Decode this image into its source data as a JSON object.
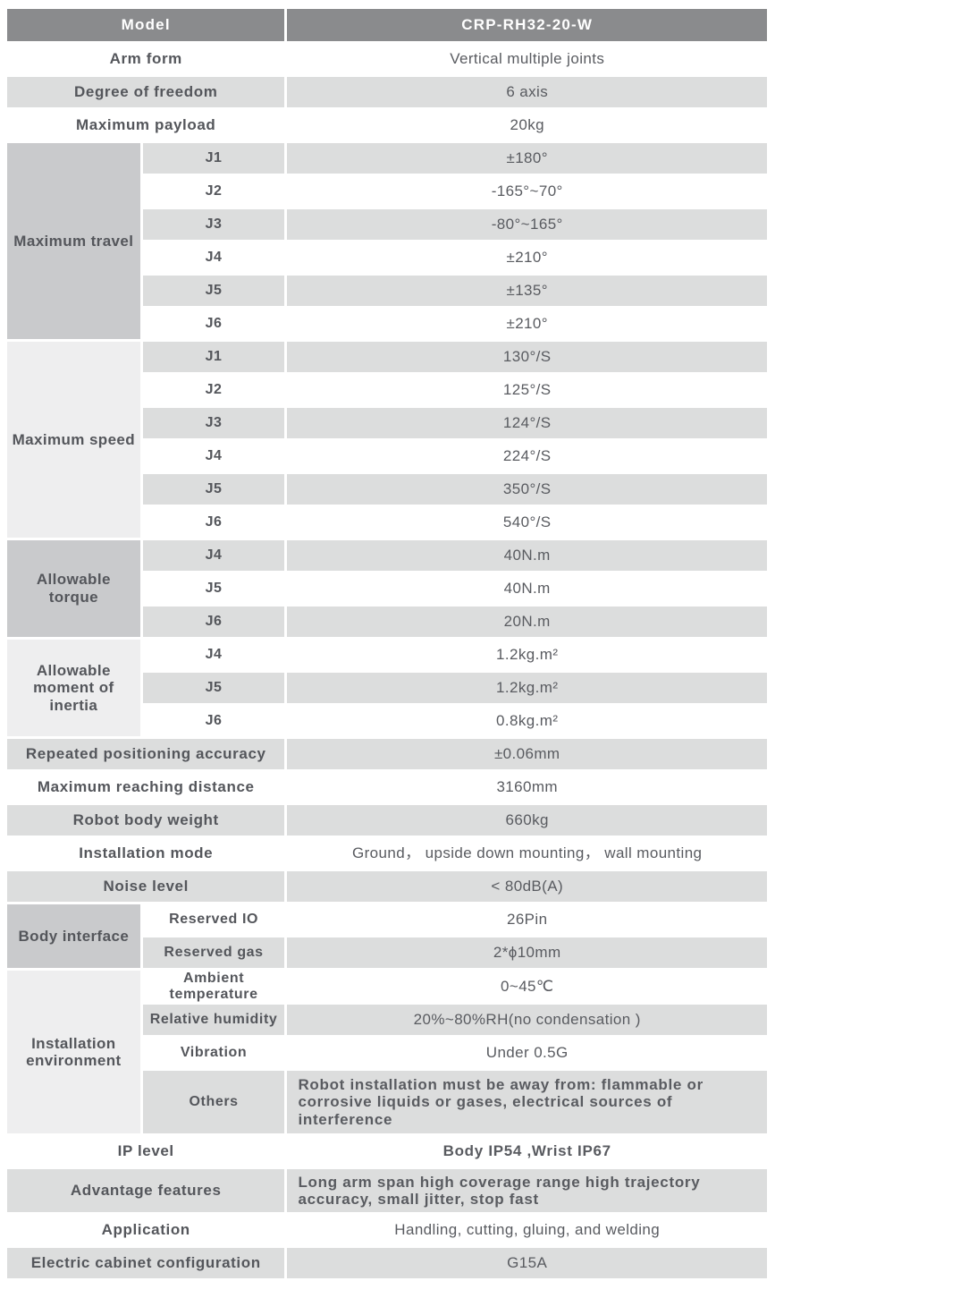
{
  "header": {
    "label": "Model",
    "value": "CRP-RH32-20-W"
  },
  "general": [
    {
      "label": "Arm form",
      "value": "Vertical multiple joints"
    },
    {
      "label": "Degree of freedom",
      "value": "6 axis"
    },
    {
      "label": "Maximum payload",
      "value": "20kg"
    }
  ],
  "maximum_travel": {
    "label": "Maximum travel",
    "joints": [
      {
        "name": "J1",
        "value": "±180°"
      },
      {
        "name": "J2",
        "value": "-165°~70°"
      },
      {
        "name": "J3",
        "value": "-80°~165°"
      },
      {
        "name": "J4",
        "value": "±210°"
      },
      {
        "name": "J5",
        "value": "±135°"
      },
      {
        "name": "J6",
        "value": "±210°"
      }
    ]
  },
  "maximum_speed": {
    "label": "Maximum speed",
    "joints": [
      {
        "name": "J1",
        "value": "130°/S"
      },
      {
        "name": "J2",
        "value": "125°/S"
      },
      {
        "name": "J3",
        "value": "124°/S"
      },
      {
        "name": "J4",
        "value": "224°/S"
      },
      {
        "name": "J5",
        "value": "350°/S"
      },
      {
        "name": "J6",
        "value": "540°/S"
      }
    ]
  },
  "allowable_torque": {
    "label": "Allowable torque",
    "joints": [
      {
        "name": "J4",
        "value": "40N.m"
      },
      {
        "name": "J5",
        "value": "40N.m"
      },
      {
        "name": "J6",
        "value": "20N.m"
      }
    ]
  },
  "allowable_inertia": {
    "label": "Allowable moment of inertia",
    "joints": [
      {
        "name": "J4",
        "value": "1.2kg.m²"
      },
      {
        "name": "J5",
        "value": "1.2kg.m²"
      },
      {
        "name": "J6",
        "value": "0.8kg.m²"
      }
    ]
  },
  "mid_rows": [
    {
      "label": "Repeated positioning accuracy",
      "value": "±0.06mm"
    },
    {
      "label": "Maximum reaching distance",
      "value": "3160mm"
    },
    {
      "label": "Robot body weight",
      "value": "660kg"
    },
    {
      "label": "Installation mode",
      "value": "Ground， upside down mounting， wall mounting"
    },
    {
      "label": "Noise level",
      "value": "< 80dB(A)"
    }
  ],
  "body_interface": {
    "label": "Body interface",
    "rows": [
      {
        "sub": "Reserved IO",
        "value": "26Pin"
      },
      {
        "sub": "Reserved gas",
        "value": "2*ϕ10mm"
      }
    ]
  },
  "installation_environment": {
    "label": "Installation environment",
    "rows": [
      {
        "sub": "Ambient temperature",
        "value": "0~45℃"
      },
      {
        "sub": "Relative humidity",
        "value": "20%~80%RH(no condensation )"
      },
      {
        "sub": "Vibration",
        "value": "Under 0.5G"
      },
      {
        "sub": "Others",
        "value": "Robot installation must be away from: flammable or corrosive liquids or gases, electrical sources of interference"
      }
    ]
  },
  "bottom_rows": [
    {
      "label": "IP level",
      "value": "Body IP54 ,Wrist IP67"
    },
    {
      "label": "Advantage features",
      "value": "Long arm span high coverage range  high trajectory accuracy, small jitter, stop fast"
    },
    {
      "label": "Application",
      "value": "Handling, cutting, gluing, and welding"
    },
    {
      "label": "Electric cabinet configuration",
      "value": "G15A"
    }
  ],
  "colors": {
    "header_bg": "#8a8b8d",
    "header_text": "#ffffff",
    "row_gray": "#dcdddd",
    "row_white": "#ffffff",
    "group_medium": "#c9cacc",
    "group_light": "#eeeeef",
    "text": "#54565b"
  }
}
